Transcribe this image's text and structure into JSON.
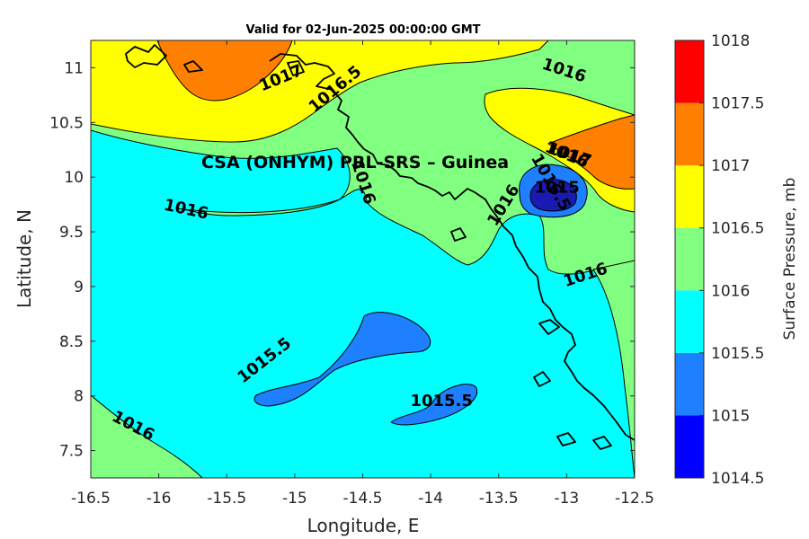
{
  "figure": {
    "title": "Valid for 02-Jun-2025 00:00:00 GMT",
    "watermark": "CSA (ONHYM) PRL-SRS  – Guinea",
    "xlabel": "Longitude, E",
    "ylabel": "Latitude, N"
  },
  "chart_data": {
    "type": "heatmap",
    "title": "Valid for 02-Jun-2025 00:00:00 GMT",
    "xlabel": "Longitude, E",
    "ylabel": "Latitude, N",
    "xlim": [
      -16.5,
      -12.5
    ],
    "ylim": [
      7.25,
      11.25
    ],
    "xticks": [
      "-16.5",
      "-16",
      "-15.5",
      "-15",
      "-14.5",
      "-14",
      "-13.5",
      "-13",
      "-12.5"
    ],
    "yticks": [
      "7.5",
      "8",
      "8.5",
      "9",
      "9.5",
      "10",
      "10.5",
      "11"
    ],
    "colorbar": {
      "label": "Surface Pressure, mb",
      "levels": [
        "1014.5",
        "1015",
        "1015.5",
        "1016",
        "1016.5",
        "1017",
        "1017.5",
        "1018"
      ],
      "colors": [
        "#0000ff",
        "#1e7fff",
        "#00ffff",
        "#80ff80",
        "#ffff00",
        "#ff8000",
        "#ff0000",
        "#800000"
      ]
    },
    "contour_labels": [
      {
        "text": "1017",
        "lon": -15.1,
        "lat": 10.9,
        "angle": -22
      },
      {
        "text": "1016.5",
        "lon": -14.7,
        "lat": 10.8,
        "angle": -40
      },
      {
        "text": "1016",
        "lon": -13.02,
        "lat": 10.97,
        "angle": 18
      },
      {
        "text": "1016",
        "lon": -14.5,
        "lat": 9.95,
        "angle": 72
      },
      {
        "text": "1016",
        "lon": -15.8,
        "lat": 9.7,
        "angle": 12
      },
      {
        "text": "1016",
        "lon": -13.46,
        "lat": 9.74,
        "angle": -58
      },
      {
        "text": "1016",
        "lon": -13.0,
        "lat": 10.2,
        "angle": 22
      },
      {
        "text": "1017",
        "lon": -12.98,
        "lat": 10.2,
        "angle": 18
      },
      {
        "text": "1016.5",
        "lon": -13.12,
        "lat": 9.95,
        "angle": 60
      },
      {
        "text": "1015",
        "lon": -13.07,
        "lat": 9.9,
        "angle": 0
      },
      {
        "text": "1016",
        "lon": -12.86,
        "lat": 9.1,
        "angle": -18
      },
      {
        "text": "1015.5",
        "lon": -15.22,
        "lat": 8.32,
        "angle": -38
      },
      {
        "text": "1015.5",
        "lon": -13.92,
        "lat": 7.95,
        "angle": 0
      },
      {
        "text": "1016",
        "lon": -16.19,
        "lat": 7.72,
        "angle": 28
      }
    ],
    "regions": [
      {
        "level": "1017-1017.5",
        "area": "northwest corner near -15.3E 11.0N; east edge near -12.6E 10.2N"
      },
      {
        "level": "1016.5-1017",
        "area": "north band above ~10.5N; east side near -12.8E 9.9N"
      },
      {
        "level": "1016-1016.5",
        "area": "central land area around -14E 10N; southwest corner; eastern strip"
      },
      {
        "level": "1015.5-1016",
        "area": "most of domain (ocean)"
      },
      {
        "level": "1015-1015.5",
        "area": "blobs near -14.8E 8.4N, -13.8E 7.9N, -13.1E 9.8N"
      },
      {
        "level": "1014.5-1015",
        "area": "small low near -13.05E 9.8N"
      }
    ]
  }
}
